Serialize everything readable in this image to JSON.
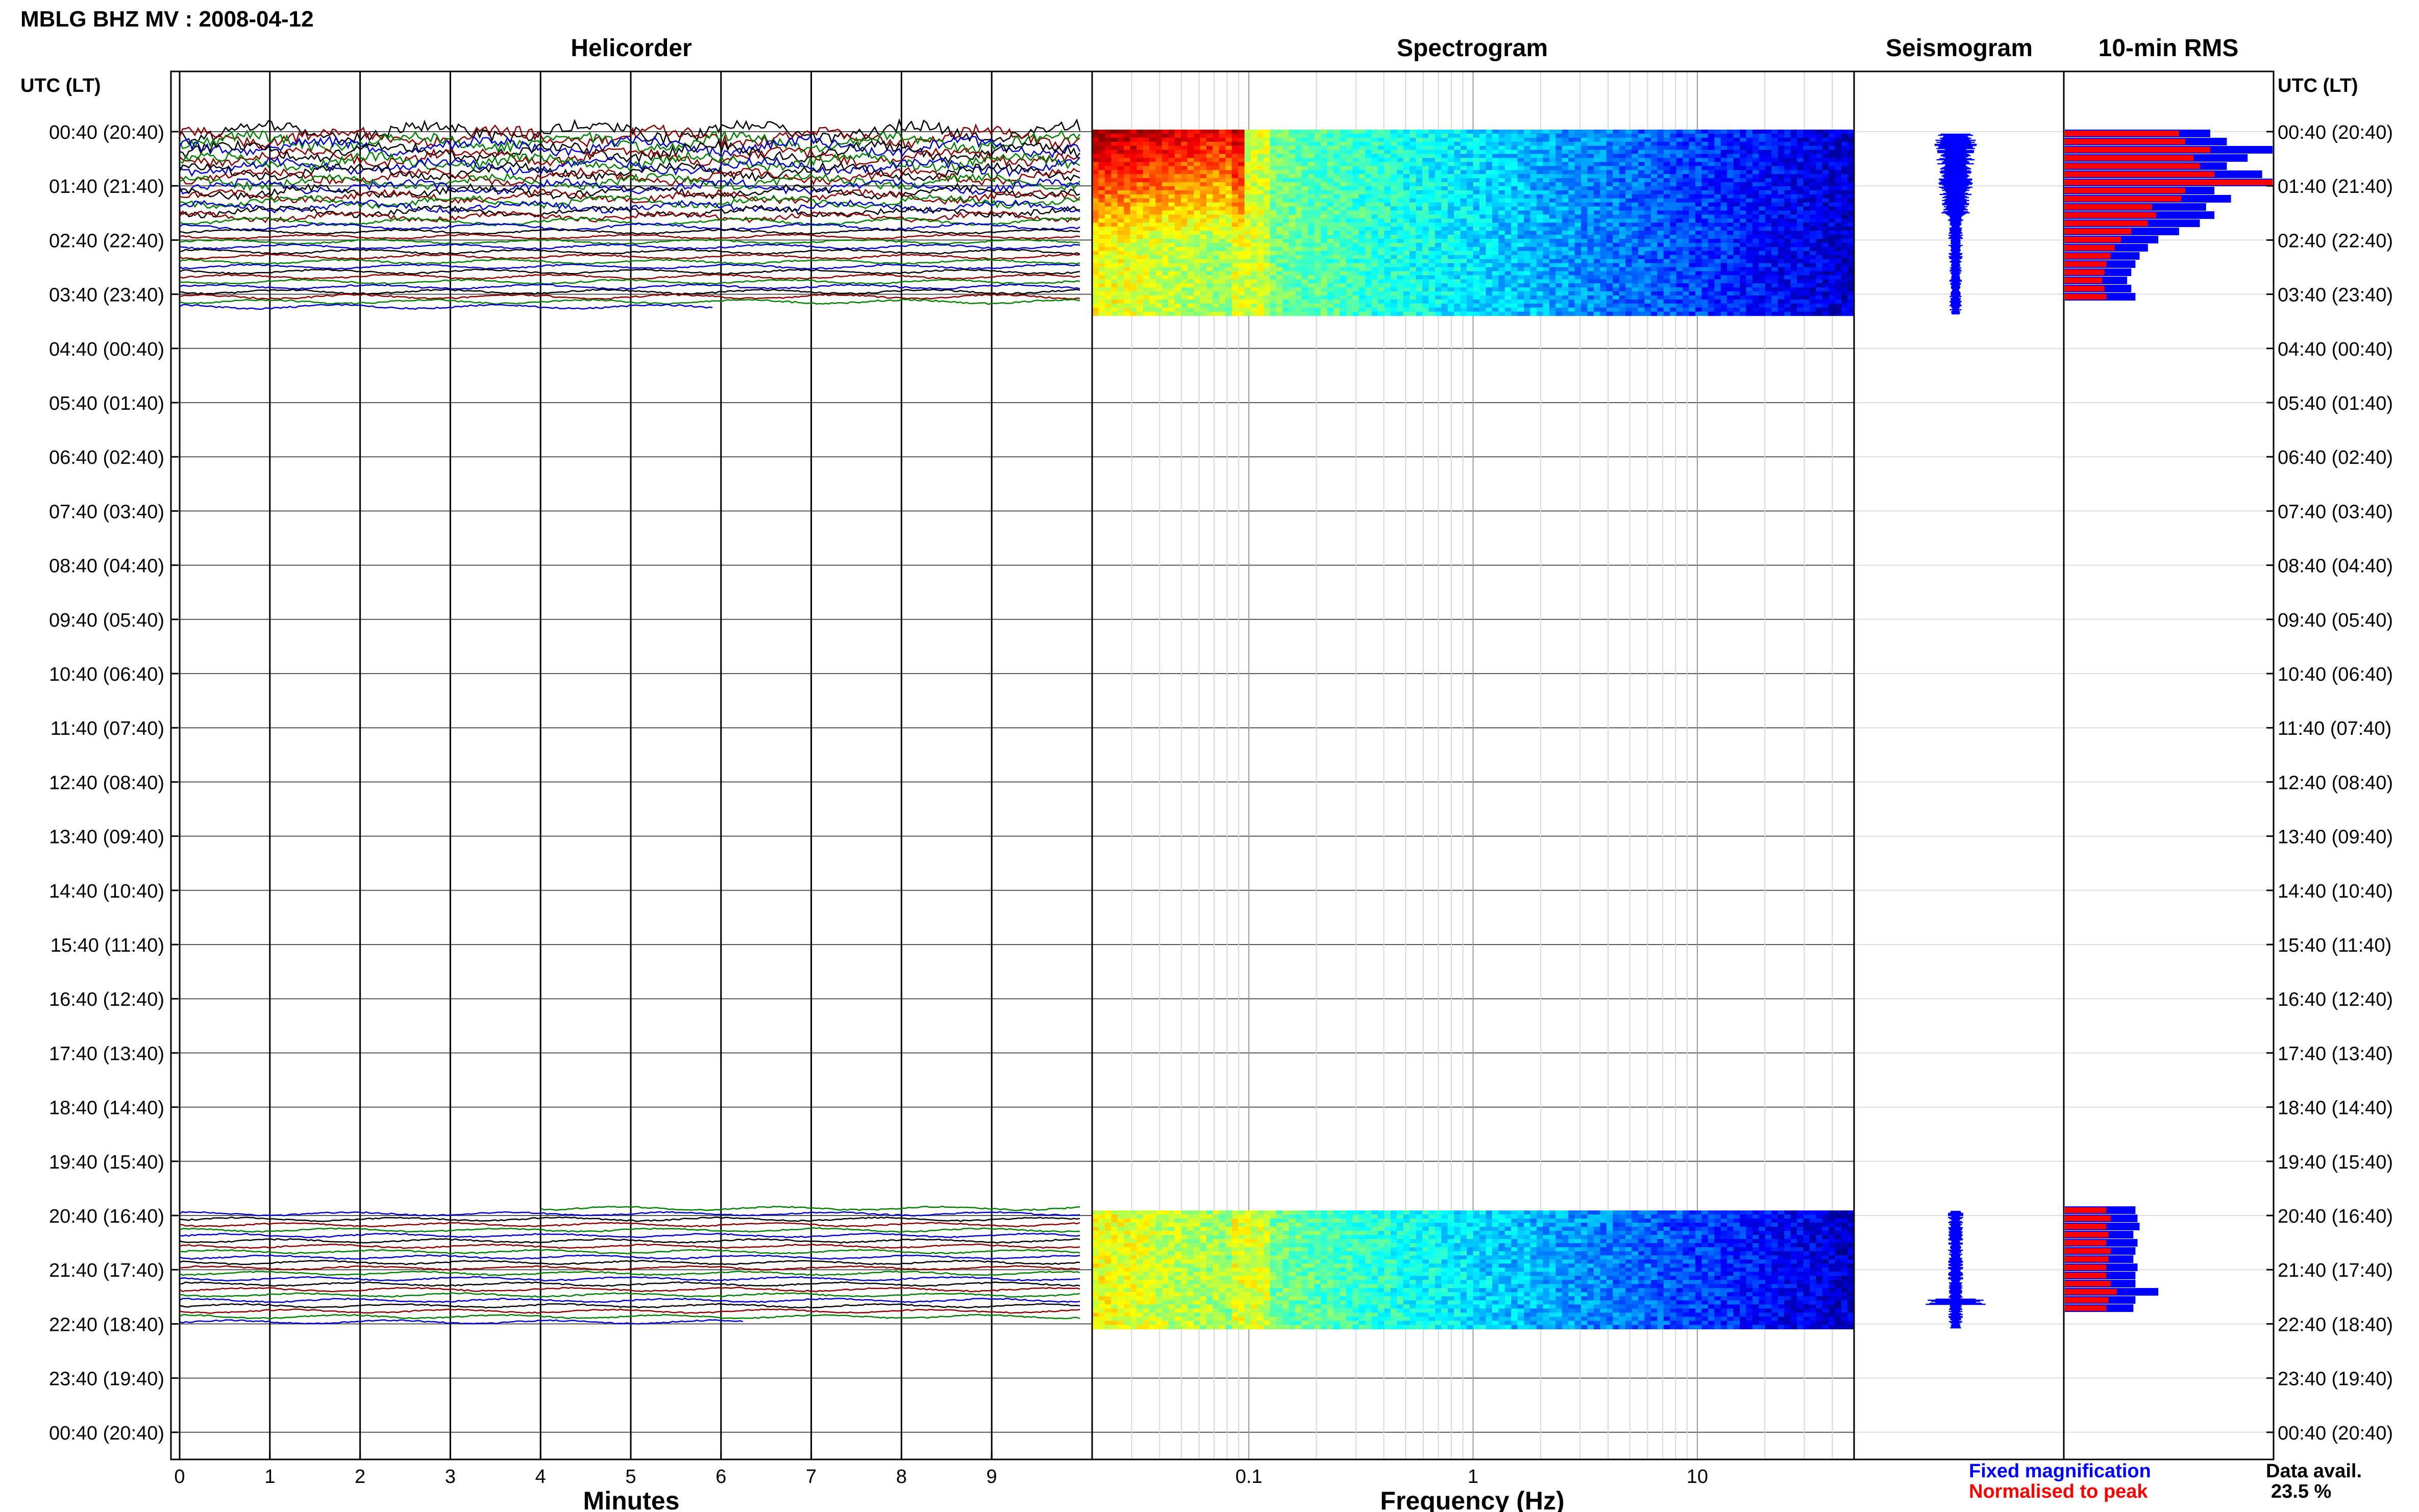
{
  "header": {
    "title": "MBLG BHZ MV : 2008-04-12",
    "panel_titles": {
      "helicorder": "Helicorder",
      "spectrogram": "Spectrogram",
      "seismogram": "Seismogram",
      "rms": "10-min RMS"
    }
  },
  "axes": {
    "time_axis_label_left": "UTC (LT)",
    "time_axis_label_right": "UTC (LT)",
    "helicorder_xlabel": "Minutes",
    "spectrogram_xlabel": "Frequency (Hz)"
  },
  "legend": {
    "fixed": "Fixed magnification",
    "normalised": "Normalised to peak",
    "fixed_color": "#0000ff",
    "normalised_color": "#ff0000"
  },
  "data_availability": {
    "label": "Data avail.",
    "value": "23.5 %"
  },
  "chart_data": {
    "type": "helicorder",
    "title": "MBLG BHZ MV : 2008-04-12",
    "time_rows": [
      "00:40 (20:40)",
      "01:40 (21:40)",
      "02:40 (22:40)",
      "03:40 (23:40)",
      "04:40 (00:40)",
      "05:40 (01:40)",
      "06:40 (02:40)",
      "07:40 (03:40)",
      "08:40 (04:40)",
      "09:40 (05:40)",
      "10:40 (06:40)",
      "11:40 (07:40)",
      "12:40 (08:40)",
      "13:40 (09:40)",
      "14:40 (10:40)",
      "15:40 (11:40)",
      "16:40 (12:40)",
      "17:40 (13:40)",
      "18:40 (14:40)",
      "19:40 (15:40)",
      "20:40 (16:40)",
      "21:40 (17:40)",
      "22:40 (18:40)",
      "23:40 (19:40)",
      "00:40 (20:40)"
    ],
    "helicorder": {
      "xlabel": "Minutes",
      "x_ticks": [
        0,
        1,
        2,
        3,
        4,
        5,
        6,
        7,
        8,
        9
      ],
      "xlim": [
        0,
        10
      ],
      "trace_colors": [
        "#000000",
        "#8b0000",
        "#008000",
        "#0000cd"
      ],
      "data_segments": [
        {
          "start": "00:40",
          "end": "04:05"
        },
        {
          "start": "20:40",
          "end": "22:40"
        }
      ]
    },
    "spectrogram": {
      "xlabel": "Frequency (Hz)",
      "x_scale": "log",
      "xlim": [
        0.02,
        50
      ],
      "x_tick_labels": [
        "0.1",
        "1",
        "10"
      ],
      "colormap": "jet"
    },
    "seismogram": {
      "series_color": "#0000ff"
    },
    "rms": {
      "series": [
        {
          "name": "Fixed magnification",
          "color": "#0000ff"
        },
        {
          "name": "Normalised to peak",
          "color": "#ff0000"
        }
      ],
      "segment1_fixed": [
        0.7,
        0.78,
        1.0,
        0.88,
        0.78,
        0.95,
        1.0,
        0.72,
        0.8,
        0.68,
        0.72,
        0.65,
        0.55,
        0.45,
        0.4,
        0.36,
        0.34,
        0.32,
        0.3,
        0.32,
        0.34
      ],
      "segment1_norm": [
        0.55,
        0.58,
        0.7,
        0.62,
        0.65,
        0.72,
        1.0,
        0.58,
        0.56,
        0.42,
        0.44,
        0.4,
        0.32,
        0.27,
        0.24,
        0.22,
        0.2,
        0.19,
        0.18,
        0.19,
        0.2
      ],
      "segment2_fixed": [
        0.34,
        0.35,
        0.36,
        0.33,
        0.35,
        0.34,
        0.33,
        0.35,
        0.34,
        0.34,
        0.45,
        0.34,
        0.33
      ],
      "segment2_norm": [
        0.2,
        0.22,
        0.2,
        0.21,
        0.2,
        0.22,
        0.21,
        0.2,
        0.2,
        0.22,
        0.25,
        0.21,
        0.2
      ]
    },
    "data_availability_percent": 23.5
  }
}
